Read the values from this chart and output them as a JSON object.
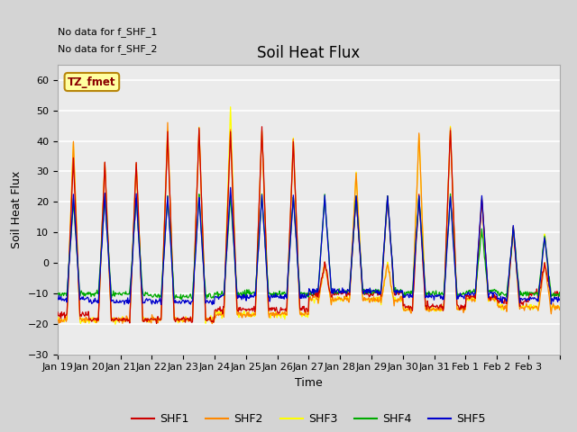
{
  "title": "Soil Heat Flux",
  "ylabel": "Soil Heat Flux",
  "xlabel": "Time",
  "ylim": [
    -30,
    65
  ],
  "yticks": [
    -30,
    -20,
    -10,
    0,
    10,
    20,
    30,
    40,
    50,
    60
  ],
  "x_labels": [
    "Jan 19",
    "Jan 20",
    "Jan 21",
    "Jan 22",
    "Jan 23",
    "Jan 24",
    "Jan 25",
    "Jan 26",
    "Jan 27",
    "Jan 28",
    "Jan 29",
    "Jan 30",
    "Jan 31",
    "Feb 1",
    "Feb 2",
    "Feb 3"
  ],
  "no_data_text1": "No data for f_SHF_1",
  "no_data_text2": "No data for f_SHF_2",
  "annotation_text": "TZ_fmet",
  "colors": {
    "SHF1": "#cc0000",
    "SHF2": "#ff8800",
    "SHF3": "#ffff00",
    "SHF4": "#00aa00",
    "SHF5": "#0000cc"
  },
  "fig_facecolor": "#d4d4d4",
  "plot_bg_color": "#ebebeb",
  "grid_color": "#ffffff",
  "title_fontsize": 12,
  "label_fontsize": 9,
  "tick_fontsize": 8,
  "n_days": 16,
  "n_per_day": 48,
  "shf1_day_peaks": [
    34,
    33,
    33,
    42,
    44,
    43,
    44,
    40,
    0,
    22,
    22,
    22,
    44,
    21,
    11,
    0
  ],
  "shf1_night_troughs": [
    -20,
    -22,
    -22,
    -22,
    -22,
    -18,
    -18,
    -18,
    -12,
    -12,
    -12,
    -17,
    -17,
    -13,
    -15,
    -12
  ],
  "shf2_day_peaks": [
    40,
    33,
    33,
    44,
    44,
    44,
    44,
    40,
    0,
    30,
    0,
    43,
    44,
    21,
    12,
    0
  ],
  "shf2_night_troughs": [
    -22,
    -22,
    -22,
    -22,
    -22,
    -20,
    -20,
    -20,
    -14,
    -14,
    -14,
    -18,
    -18,
    -14,
    -17,
    -17
  ],
  "shf3_day_peaks": [
    40,
    33,
    33,
    44,
    44,
    51,
    44,
    41,
    0,
    30,
    0,
    43,
    44,
    21,
    12,
    10
  ],
  "shf3_night_troughs": [
    -22,
    -22,
    -22,
    -22,
    -22,
    -20,
    -20,
    -20,
    -14,
    -14,
    -14,
    -18,
    -18,
    -14,
    -17,
    -17
  ],
  "shf4_day_peaks": [
    20,
    21,
    21,
    22,
    22,
    22,
    22,
    22,
    22,
    22,
    22,
    22,
    22,
    11,
    11,
    9
  ],
  "shf4_night_troughs": [
    -12,
    -12,
    -12,
    -13,
    -13,
    -12,
    -12,
    -12,
    -11,
    -11,
    -11,
    -12,
    -12,
    -11,
    -12,
    -12
  ],
  "shf5_day_peaks": [
    22,
    22,
    22,
    22,
    22,
    25,
    22,
    22,
    22,
    22,
    22,
    22,
    22,
    22,
    12,
    9
  ],
  "shf5_night_troughs": [
    -14,
    -15,
    -15,
    -15,
    -15,
    -13,
    -13,
    -13,
    -11,
    -11,
    -11,
    -13,
    -13,
    -12,
    -14,
    -14
  ]
}
